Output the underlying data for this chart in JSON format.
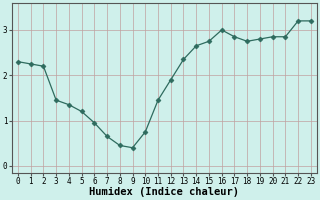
{
  "x": [
    0,
    1,
    2,
    3,
    4,
    5,
    6,
    7,
    8,
    9,
    10,
    11,
    12,
    13,
    14,
    15,
    16,
    17,
    18,
    19,
    20,
    21,
    22,
    23
  ],
  "y": [
    2.3,
    2.25,
    2.2,
    1.45,
    1.35,
    1.2,
    0.95,
    0.65,
    0.45,
    0.4,
    0.75,
    1.45,
    1.9,
    2.35,
    2.65,
    2.75,
    3.0,
    2.85,
    2.75,
    2.8,
    2.85,
    2.85,
    3.2,
    3.2
  ],
  "line_color": "#2e6b5e",
  "marker": "D",
  "marker_size": 2.5,
  "bg_color": "#cff0eb",
  "grid_color": "#c0a0a0",
  "xlabel": "Humidex (Indice chaleur)",
  "xlabel_fontsize": 7.5,
  "ylim": [
    -0.15,
    3.6
  ],
  "xlim": [
    -0.5,
    23.5
  ],
  "yticks": [
    0,
    1,
    2,
    3
  ],
  "xticks": [
    0,
    1,
    2,
    3,
    4,
    5,
    6,
    7,
    8,
    9,
    10,
    11,
    12,
    13,
    14,
    15,
    16,
    17,
    18,
    19,
    20,
    21,
    22,
    23
  ],
  "tick_fontsize": 5.5,
  "spine_color": "#555555",
  "linewidth": 0.9
}
